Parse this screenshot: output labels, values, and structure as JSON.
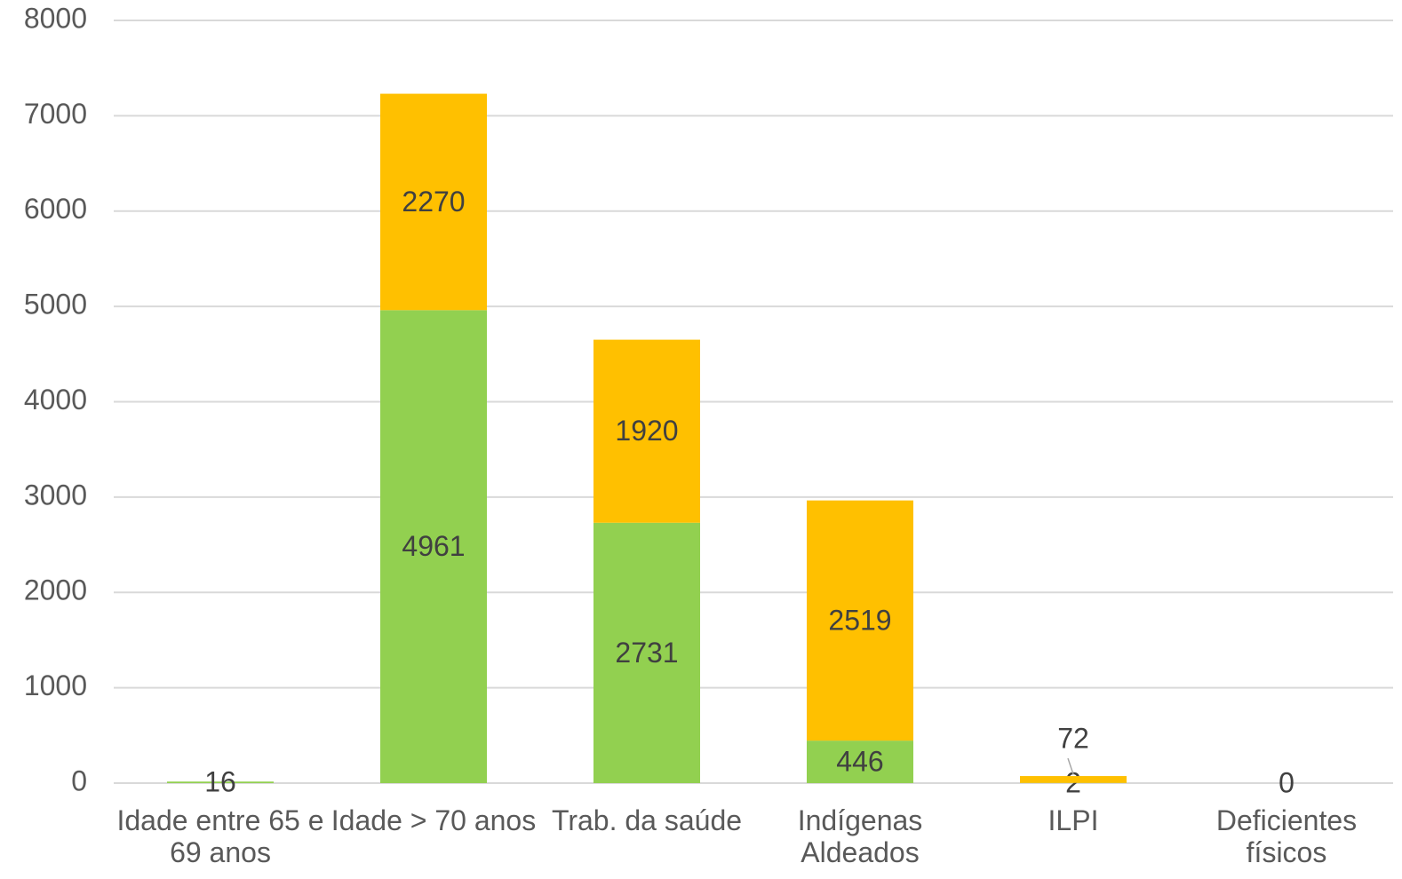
{
  "chart_data": {
    "type": "bar",
    "stacked": true,
    "categories": [
      "Idade entre 65 e 69 anos",
      "Idade > 70 anos",
      "Trab. da saúde",
      "Indígenas Aldeados",
      "ILPI",
      "Deficientes físicos"
    ],
    "series": [
      {
        "color": "#92d050",
        "values": [
          16,
          4961,
          2731,
          446,
          2,
          0
        ]
      },
      {
        "color": "#ffc000",
        "values": [
          null,
          2270,
          1920,
          2519,
          72,
          null
        ]
      }
    ],
    "ylim": [
      0,
      8000
    ],
    "yticks": [
      0,
      1000,
      2000,
      3000,
      4000,
      5000,
      6000,
      7000,
      8000
    ],
    "grid": true
  }
}
